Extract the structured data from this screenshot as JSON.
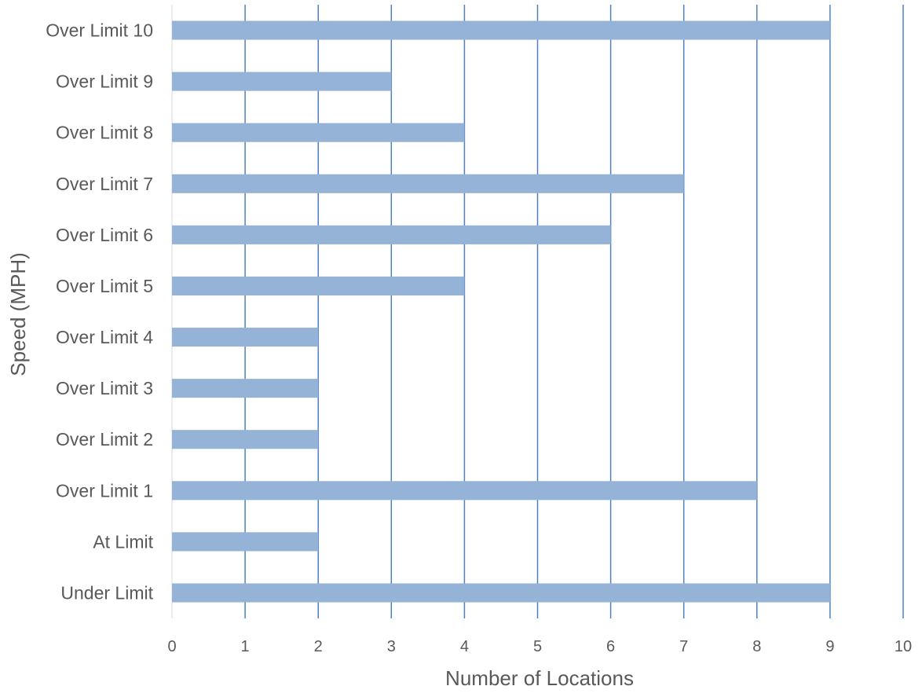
{
  "chart_data": {
    "type": "bar",
    "orientation": "horizontal",
    "categories": [
      "Under Limit",
      "At Limit",
      "Over Limit 1",
      "Over Limit 2",
      "Over Limit 3",
      "Over Limit 4",
      "Over Limit 5",
      "Over Limit 6",
      "Over Limit 7",
      "Over Limit 8",
      "Over Limit 9",
      "Over Limit 10"
    ],
    "values": [
      9,
      2,
      8,
      2,
      2,
      2,
      4,
      6,
      7,
      4,
      3,
      9
    ],
    "title": "",
    "xlabel": "Number of Locations",
    "ylabel": "Speed (MPH)",
    "xlim": [
      0,
      10
    ],
    "xticks": [
      0,
      1,
      2,
      3,
      4,
      5,
      6,
      7,
      8,
      9,
      10
    ],
    "grid": "vertical",
    "legend": "none",
    "colors": {
      "bar": "#95B3D7",
      "grid": "#4F81BD",
      "text": "#595959"
    }
  }
}
